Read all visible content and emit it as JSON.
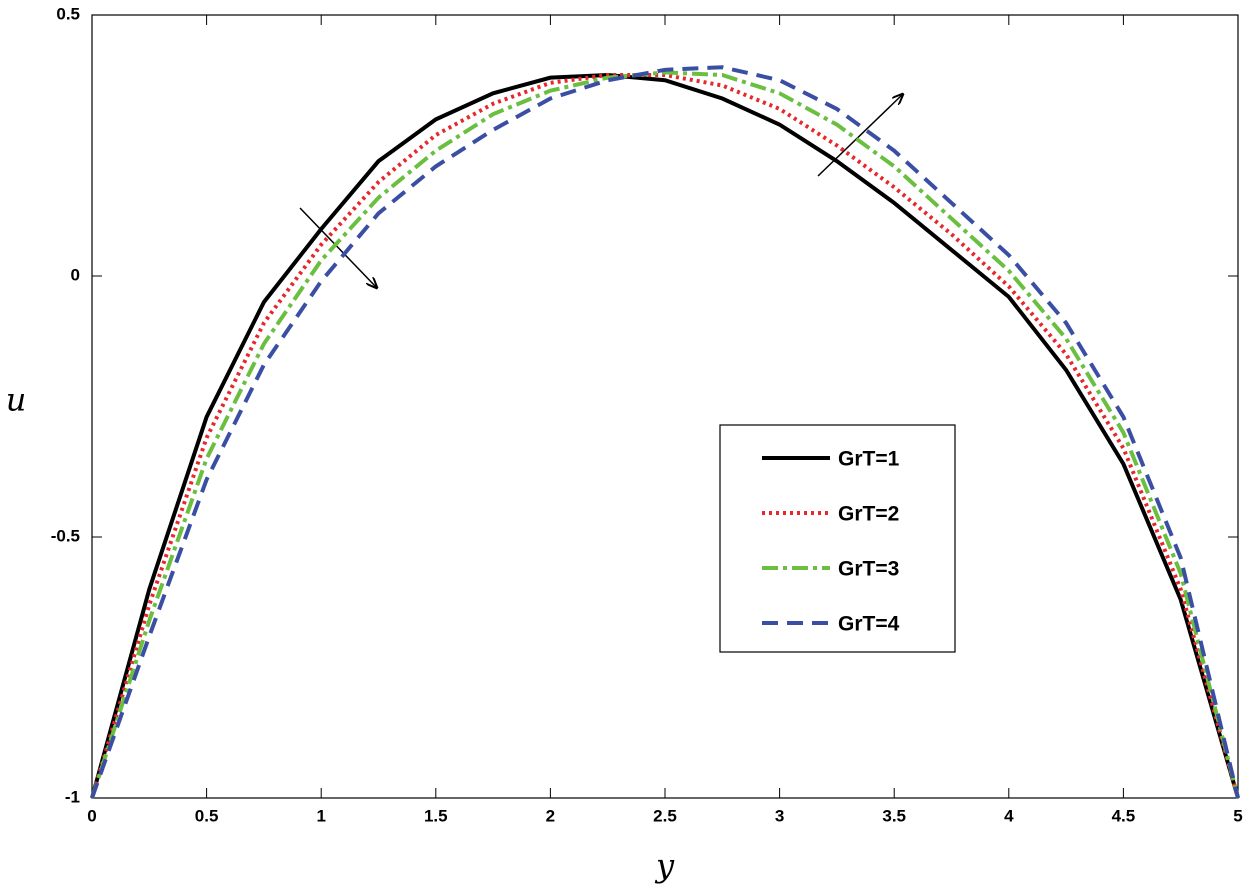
{
  "chart_data": {
    "type": "line",
    "x_label": "y",
    "y_label": "u",
    "x": [
      0,
      0.25,
      0.5,
      0.75,
      1,
      1.25,
      1.5,
      1.75,
      2,
      2.25,
      2.5,
      2.75,
      3,
      3.25,
      3.5,
      3.75,
      4,
      4.25,
      4.5,
      4.75,
      5
    ],
    "series": [
      {
        "name": "GrT=1",
        "color": "#000000",
        "style": "solid",
        "values": [
          -1,
          -0.6,
          -0.27,
          -0.05,
          0.09,
          0.22,
          0.3,
          0.35,
          0.38,
          0.385,
          0.375,
          0.34,
          0.29,
          0.22,
          0.14,
          0.05,
          -0.04,
          -0.18,
          -0.36,
          -0.62,
          -1
        ]
      },
      {
        "name": "GrT=2",
        "color": "#e8262b",
        "style": "dotted",
        "values": [
          -1,
          -0.63,
          -0.31,
          -0.09,
          0.06,
          0.18,
          0.27,
          0.33,
          0.37,
          0.385,
          0.385,
          0.365,
          0.32,
          0.25,
          0.17,
          0.08,
          -0.02,
          -0.15,
          -0.33,
          -0.6,
          -1
        ]
      },
      {
        "name": "GrT=3",
        "color": "#6abf40",
        "style": "dashdot",
        "values": [
          -1,
          -0.66,
          -0.35,
          -0.13,
          0.03,
          0.15,
          0.24,
          0.31,
          0.355,
          0.38,
          0.39,
          0.385,
          0.35,
          0.29,
          0.21,
          0.11,
          0.01,
          -0.12,
          -0.3,
          -0.57,
          -1
        ]
      },
      {
        "name": "GrT=4",
        "color": "#3a4fa3",
        "style": "dashed",
        "values": [
          -1,
          -0.69,
          -0.39,
          -0.17,
          -0.01,
          0.12,
          0.21,
          0.28,
          0.34,
          0.375,
          0.395,
          0.4,
          0.375,
          0.32,
          0.24,
          0.14,
          0.04,
          -0.09,
          -0.27,
          -0.54,
          -1
        ]
      }
    ],
    "xlim": [
      0,
      5
    ],
    "ylim": [
      -1,
      0.5
    ],
    "xticks": [
      0,
      0.5,
      1,
      1.5,
      2,
      2.5,
      3,
      3.5,
      4,
      4.5,
      5
    ],
    "yticks": [
      -1,
      -0.5,
      0,
      0.5
    ],
    "grid": false,
    "legend": "lower right"
  }
}
